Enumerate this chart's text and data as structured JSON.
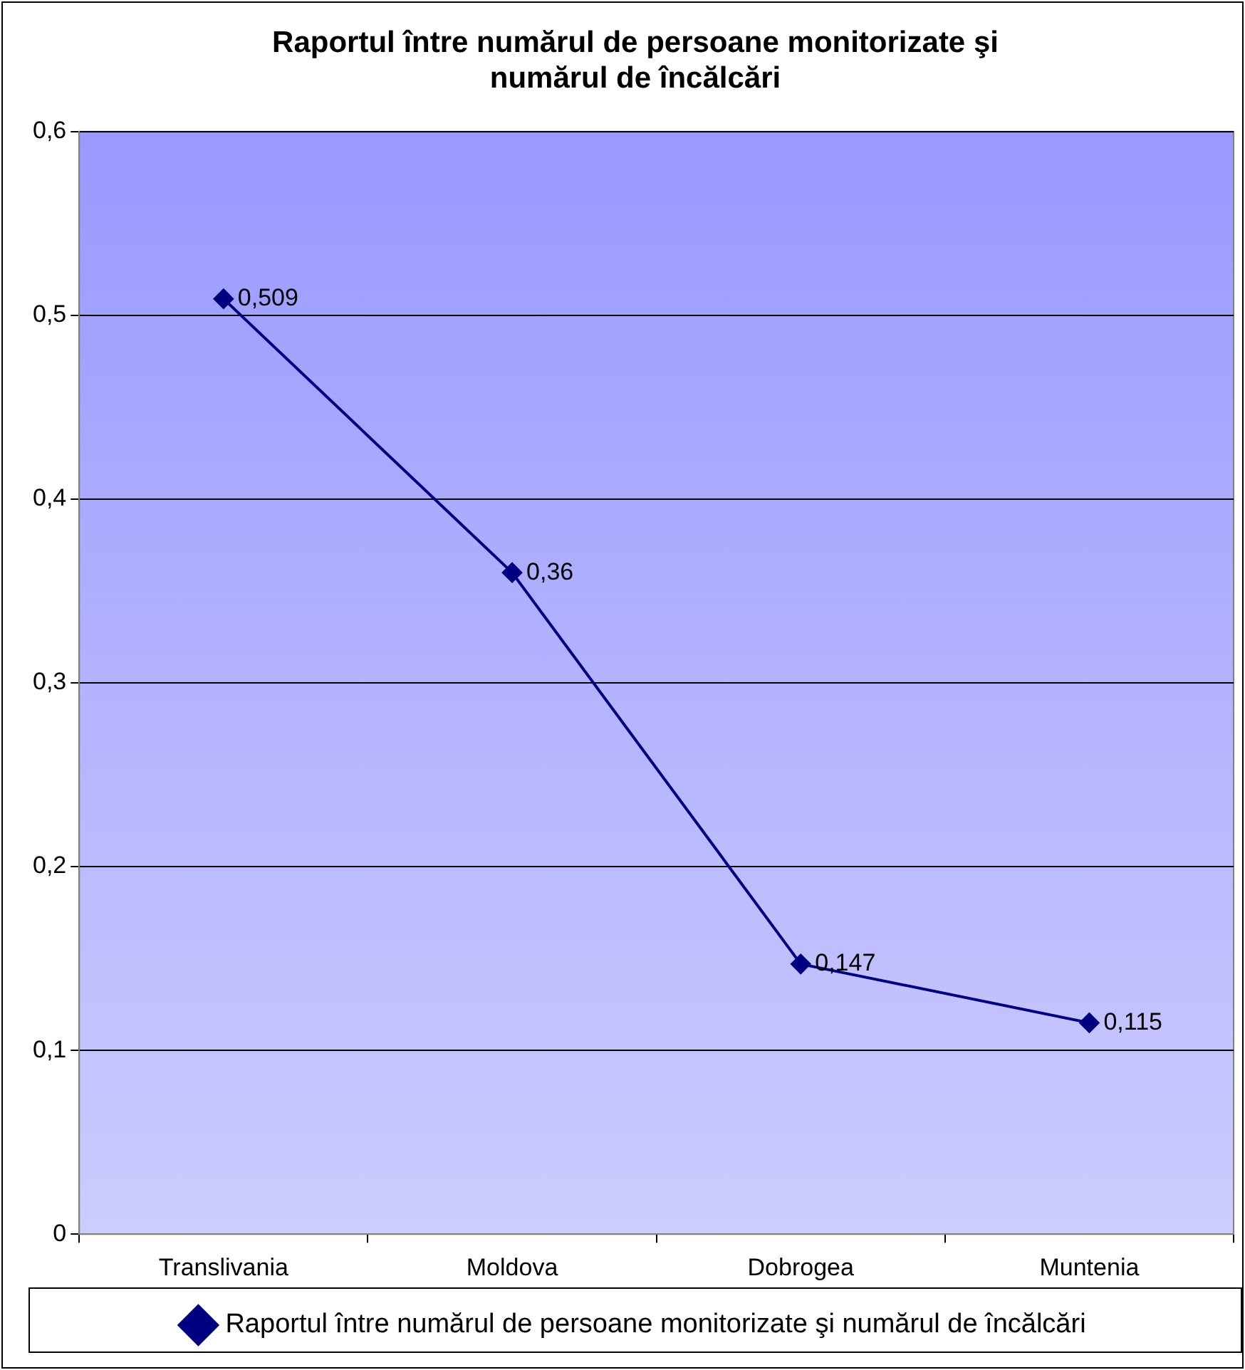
{
  "chart_data": {
    "type": "line",
    "title": "Raportul între numărul de persoane monitorizate şi\nnumărul de încălcări",
    "categories": [
      "Translivania",
      "Moldova",
      "Dobrogea",
      "Muntenia"
    ],
    "series": [
      {
        "name": "Raportul între numărul de persoane monitorizate şi numărul de încălcări",
        "color": "#000080",
        "values": [
          0.509,
          0.36,
          0.147,
          0.115
        ],
        "value_labels": [
          "0,509",
          "0,36",
          "0,147",
          "0,115"
        ]
      }
    ],
    "ylim": [
      0,
      0.6
    ],
    "yticks": [
      {
        "value": 0,
        "label": "0"
      },
      {
        "value": 0.1,
        "label": "0,1"
      },
      {
        "value": 0.2,
        "label": "0,2"
      },
      {
        "value": 0.3,
        "label": "0,3"
      },
      {
        "value": 0.4,
        "label": "0,4"
      },
      {
        "value": 0.5,
        "label": "0,5"
      },
      {
        "value": 0.6,
        "label": "0,6"
      }
    ],
    "grid": "y",
    "legend": "bottom",
    "marker": "diamond",
    "line_style": "solid"
  }
}
